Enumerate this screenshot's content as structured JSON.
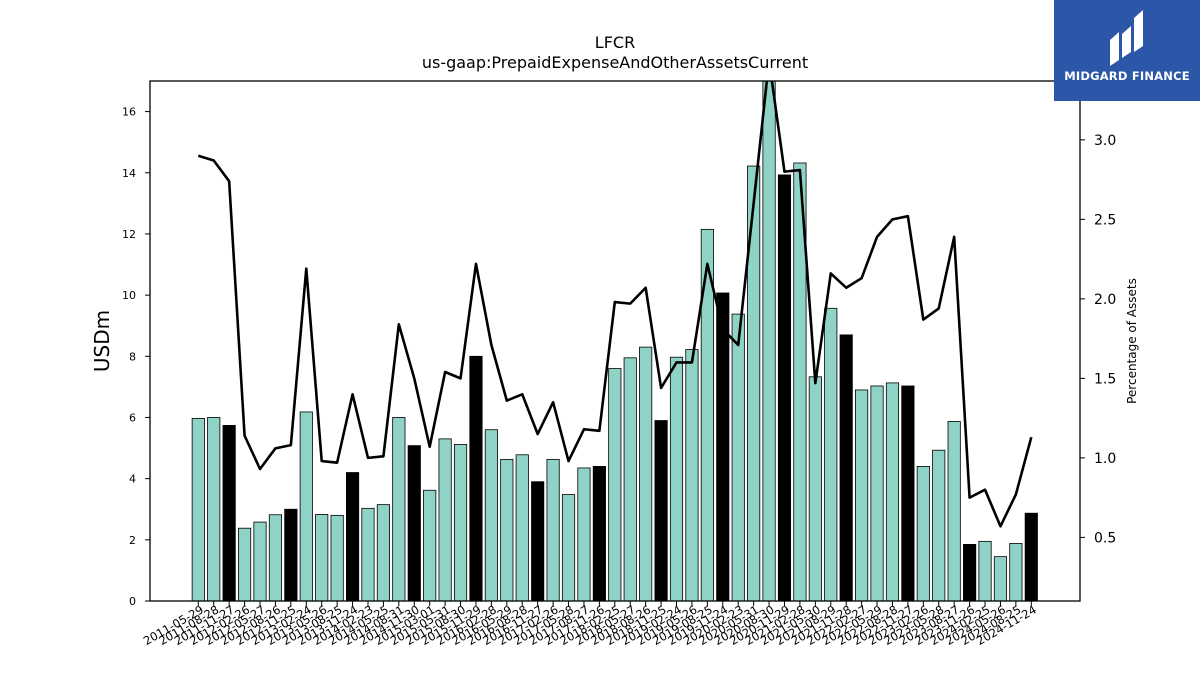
{
  "colors": {
    "bar_default": "#8fd3c6",
    "bar_highlight": "#000000",
    "line": "#000000",
    "logo_bg": "#2c56a7"
  },
  "logo": {
    "name": "MIDGARD FINANCE"
  },
  "chart_data": {
    "type": "bar",
    "title": "LFCR",
    "subtitle": "us-gaap:PrepaidExpenseAndOtherAssetsCurrent",
    "ylabel": "USDm",
    "ylabel_right": "Percentage of Assets",
    "ylim": [
      0,
      17
    ],
    "ylim_right": [
      0.1,
      3.37
    ],
    "yticks": [
      0,
      2,
      4,
      6,
      8,
      10,
      12,
      14,
      16
    ],
    "yticks_right": [
      0.5,
      1.0,
      1.5,
      2.0,
      2.5,
      3.0
    ],
    "grid": false,
    "categories": [
      "2011-05-29",
      "2011-08-28",
      "2011-11-27",
      "2012-02-26",
      "2012-05-27",
      "2012-08-26",
      "2012-11-25",
      "2013-02-24",
      "2013-05-26",
      "2013-08-25",
      "2013-11-24",
      "2014-02-23",
      "2014-05-25",
      "2014-08-31",
      "2014-11-30",
      "2015-03-01",
      "2015-05-31",
      "2015-08-30",
      "2015-11-29",
      "2016-02-28",
      "2016-05-29",
      "2016-08-28",
      "2016-11-27",
      "2017-02-26",
      "2017-05-28",
      "2017-08-27",
      "2017-11-26",
      "2018-02-25",
      "2018-05-27",
      "2018-08-26",
      "2018-11-25",
      "2019-02-24",
      "2019-05-26",
      "2019-08-25",
      "2019-11-24",
      "2020-02-23",
      "2020-05-31",
      "2020-08-30",
      "2020-11-29",
      "2021-02-28",
      "2021-05-30",
      "2021-08-29",
      "2021-11-28",
      "2022-02-27",
      "2022-05-29",
      "2022-08-28",
      "2022-11-27",
      "2023-02-26",
      "2023-05-28",
      "2023-08-27",
      "2023-11-26",
      "2024-02-25",
      "2024-05-26",
      "2024-08-25",
      "2024-11-24"
    ],
    "series": [
      {
        "type": "bar",
        "values": [
          5.97,
          6.0,
          5.74,
          2.38,
          2.58,
          2.82,
          3.0,
          6.18,
          2.83,
          2.8,
          4.2,
          3.03,
          3.15,
          6.0,
          5.08,
          3.62,
          5.3,
          5.12,
          8.0,
          5.6,
          4.63,
          4.78,
          3.9,
          4.63,
          3.48,
          4.35,
          4.4,
          7.6,
          7.95,
          8.3,
          5.9,
          7.97,
          8.22,
          12.15,
          10.07,
          9.38,
          14.22,
          17.4,
          13.93,
          14.32,
          7.33,
          9.57,
          8.7,
          6.9,
          7.03,
          7.13,
          7.03,
          4.4,
          4.93,
          5.87,
          1.85,
          1.95,
          1.45,
          1.88,
          2.87
        ],
        "highlight": [
          false,
          false,
          true,
          false,
          false,
          false,
          true,
          false,
          false,
          false,
          true,
          false,
          false,
          false,
          true,
          false,
          false,
          false,
          true,
          false,
          false,
          false,
          true,
          false,
          false,
          false,
          true,
          false,
          false,
          false,
          true,
          false,
          false,
          false,
          true,
          false,
          false,
          false,
          true,
          false,
          false,
          false,
          true,
          false,
          false,
          false,
          true,
          false,
          false,
          false,
          true,
          false,
          false,
          false,
          true
        ]
      },
      {
        "type": "line",
        "axis": "right",
        "values": [
          2.9,
          2.87,
          2.74,
          1.14,
          0.93,
          1.06,
          1.08,
          2.19,
          0.98,
          0.97,
          1.4,
          1.0,
          1.01,
          1.84,
          1.5,
          1.07,
          1.54,
          1.5,
          2.22,
          1.71,
          1.36,
          1.4,
          1.15,
          1.35,
          0.98,
          1.18,
          1.17,
          1.98,
          1.97,
          2.07,
          1.44,
          1.6,
          1.6,
          2.22,
          1.81,
          1.71,
          2.6,
          3.5,
          2.8,
          2.81,
          1.47,
          2.16,
          2.07,
          2.13,
          2.39,
          2.5,
          2.52,
          1.87,
          1.94,
          2.39,
          0.75,
          0.8,
          0.57,
          0.77,
          1.13
        ]
      }
    ]
  }
}
